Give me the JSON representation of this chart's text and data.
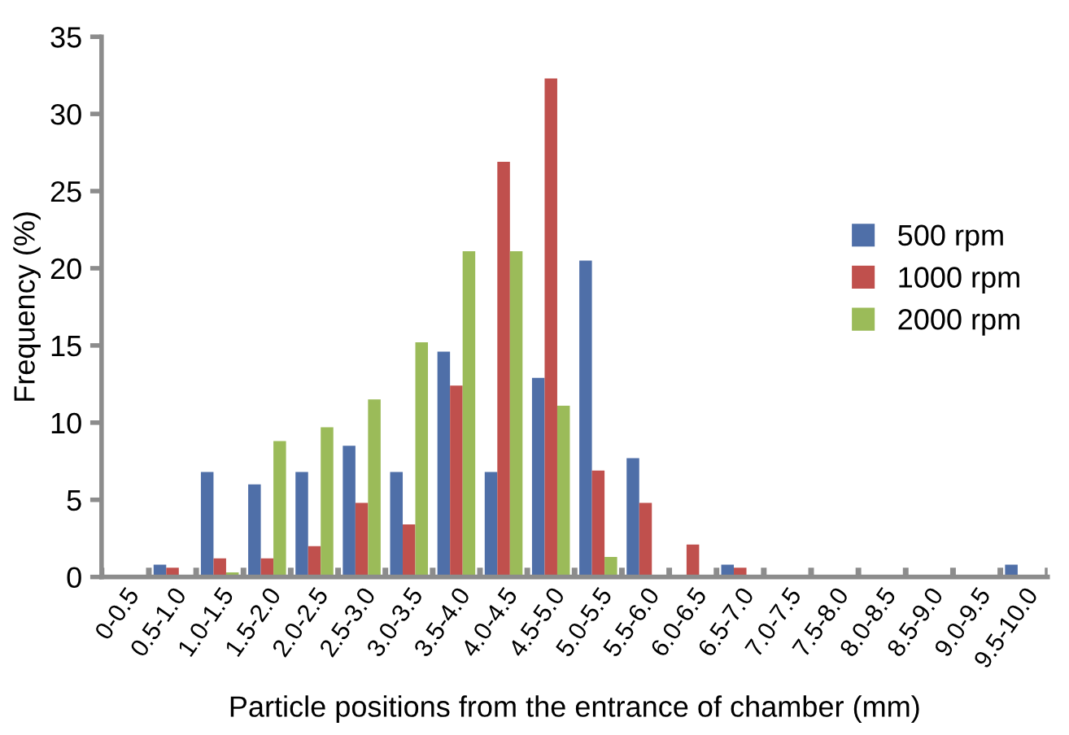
{
  "chart_data": {
    "type": "bar",
    "xlabel": "Particle positions from the entrance of chamber (mm)",
    "ylabel": "Frequency (%)",
    "categories": [
      "0-0.5",
      "0.5-1.0",
      "1.0-1.5",
      "1.5-2.0",
      "2.0-2.5",
      "2.5-3.0",
      "3.0-3.5",
      "3.5-4.0",
      "4.0-4.5",
      "4.5-5.0",
      "5.0-5.5",
      "5.5-6.0",
      "6.0-6.5",
      "6.5-7.0",
      "7.0-7.5",
      "7.5-8.0",
      "8.0-8.5",
      "8.5-9.0",
      "9.0-9.5",
      "9.5-10.0"
    ],
    "series": [
      {
        "name": "500 rpm",
        "color": "#4f6fa8",
        "values": [
          0,
          0.8,
          6.8,
          6.0,
          6.8,
          8.5,
          6.8,
          14.6,
          6.8,
          12.9,
          20.5,
          7.7,
          0,
          0.8,
          0,
          0,
          0,
          0,
          0,
          0.8
        ]
      },
      {
        "name": "1000 rpm",
        "color": "#c0504d",
        "values": [
          0,
          0.6,
          1.2,
          1.2,
          2.0,
          4.8,
          3.4,
          12.4,
          26.9,
          32.3,
          6.9,
          4.8,
          2.1,
          0.6,
          0,
          0,
          0,
          0,
          0,
          0
        ]
      },
      {
        "name": "2000 rpm",
        "color": "#9bbb59",
        "values": [
          0,
          0,
          0.3,
          8.8,
          9.7,
          11.5,
          15.2,
          21.1,
          21.1,
          11.1,
          1.3,
          0,
          0,
          0,
          0,
          0,
          0,
          0,
          0,
          0
        ]
      }
    ],
    "ylim": [
      0,
      35
    ],
    "yticks": [
      0,
      5,
      10,
      15,
      20,
      25,
      30,
      35
    ],
    "legend": "right",
    "grid": false
  }
}
